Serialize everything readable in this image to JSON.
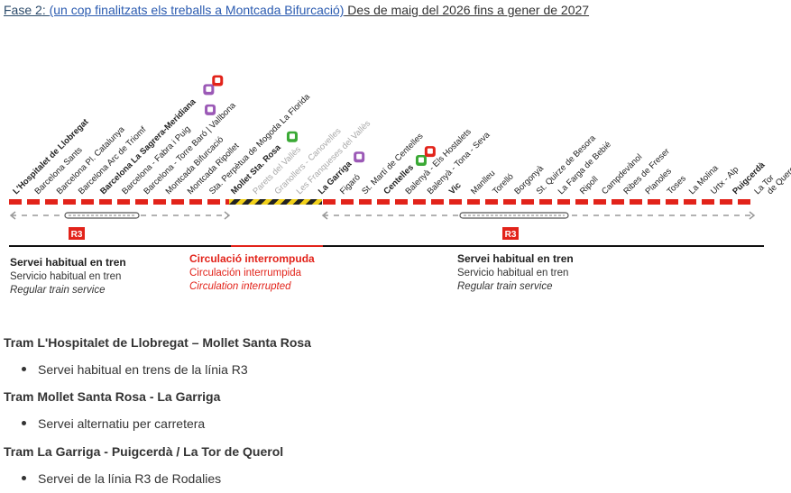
{
  "heading": {
    "lead": "Fase 2",
    "link": "(un cop finalitzats els treballs a Montcada Bifurcació)",
    "rest": " Des de maig del 2026 fins a gener de 2027"
  },
  "line_badge": "R3",
  "stations": [
    {
      "name": "L'Hospitalet de Llobregat",
      "status": "normal",
      "bold": true
    },
    {
      "name": "Barcelona Sants",
      "status": "normal",
      "bold": false
    },
    {
      "name": "Barcelona Pl. Catalunya",
      "status": "normal",
      "bold": false
    },
    {
      "name": "Barcelona Arc de Triomf",
      "status": "normal",
      "bold": false
    },
    {
      "name": "Barcelona La Sagrera-Meridiana",
      "status": "normal",
      "bold": true,
      "icons": [
        "metro",
        "rodalies"
      ]
    },
    {
      "name": "Barcelona - Fabra i Puig",
      "status": "normal",
      "bold": false,
      "icons": [
        "metro"
      ]
    },
    {
      "name": "Barcelona - Torre Baró | Vallbona",
      "status": "normal",
      "bold": false
    },
    {
      "name": "Montcada Bifurcació",
      "status": "normal",
      "bold": false
    },
    {
      "name": "Montcada Ripollet",
      "status": "normal",
      "bold": false
    },
    {
      "name": "Sta. Perpètua de Mogoda La Florida",
      "status": "normal",
      "bold": false
    },
    {
      "name": "Mollet Sta. Rosa",
      "status": "normal",
      "bold": true,
      "icons": [
        "fgc"
      ]
    },
    {
      "name": "Parets del Vallès",
      "status": "interrupted",
      "bold": false
    },
    {
      "name": "Granollers - Canovelles",
      "status": "interrupted",
      "bold": false
    },
    {
      "name": "Les Franqueses del Vallès",
      "status": "interrupted",
      "bold": false
    },
    {
      "name": "La Garriga",
      "status": "normal",
      "bold": true,
      "icons": [
        "metro"
      ]
    },
    {
      "name": "Figaró",
      "status": "normal",
      "bold": false
    },
    {
      "name": "St. Martí de Centelles",
      "status": "normal",
      "bold": false
    },
    {
      "name": "Centelles",
      "status": "normal",
      "bold": true,
      "icons": [
        "fgc",
        "rodalies"
      ]
    },
    {
      "name": "Balenyà - Els Hostalets",
      "status": "normal",
      "bold": false
    },
    {
      "name": "Balenyà - Tona - Seva",
      "status": "normal",
      "bold": false
    },
    {
      "name": "Vic",
      "status": "normal",
      "bold": true
    },
    {
      "name": "Manlleu",
      "status": "normal",
      "bold": false
    },
    {
      "name": "Torelló",
      "status": "normal",
      "bold": false
    },
    {
      "name": "Borgonyà",
      "status": "normal",
      "bold": false
    },
    {
      "name": "St. Quirze de Besora",
      "status": "normal",
      "bold": false
    },
    {
      "name": "La Farga de Bebié",
      "status": "normal",
      "bold": false
    },
    {
      "name": "Ripoll",
      "status": "normal",
      "bold": false
    },
    {
      "name": "Campdevànol",
      "status": "normal",
      "bold": false
    },
    {
      "name": "Ribes de Freser",
      "status": "normal",
      "bold": false
    },
    {
      "name": "Planoles",
      "status": "normal",
      "bold": false
    },
    {
      "name": "Toses",
      "status": "normal",
      "bold": false
    },
    {
      "name": "La Molina",
      "status": "normal",
      "bold": false
    },
    {
      "name": "Urtx - Alp",
      "status": "normal",
      "bold": false
    },
    {
      "name": "Puigcerdà",
      "status": "normal",
      "bold": true
    },
    {
      "name": "La Tor de Querol",
      "status": "normal",
      "bold": false
    }
  ],
  "legend": {
    "normal_left": {
      "l1": "Servei habitual en tren",
      "l2": "Servicio habitual en tren",
      "l3": "Regular train service"
    },
    "interrupted": {
      "l1": "Circulació interrompuda",
      "l2": "Circulación interrumpida",
      "l3": "Circulation interrupted"
    },
    "normal_right": {
      "l1": "Servei habitual en tren",
      "l2": "Servicio habitual en tren",
      "l3": "Regular train service"
    }
  },
  "sections": [
    {
      "title": "Tram L'Hospitalet de Llobregat – Mollet Santa Rosa",
      "bullet": "Servei habitual en trens de la línia R3"
    },
    {
      "title": "Tram Mollet Santa Rosa - La Garriga",
      "bullet": "Servei alternatiu per carretera"
    },
    {
      "title": "Tram La Garriga - Puigcerdà / La Tor de Querol",
      "bullet": "Servei de la línia R3 de Rodalies"
    }
  ],
  "colors": {
    "line_red": "#e2231a",
    "interrupted_yellow": "#f2d11a",
    "grey_text": "#a8a8a8",
    "metro_purple": "#9b59b6",
    "fgc_green": "#3aa935",
    "dark_text": "#222222"
  }
}
